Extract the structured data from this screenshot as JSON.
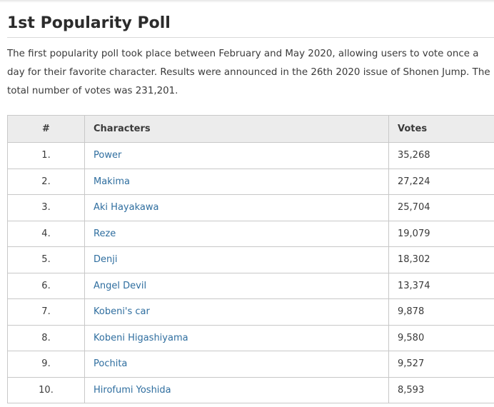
{
  "section": {
    "title": "1st Popularity Poll",
    "intro": "The first popularity poll took place between February and May 2020, allowing users to vote once a day for their favorite character. Results were announced in the 26th 2020 issue of Shonen Jump. The total number of votes was 231,201."
  },
  "table": {
    "headers": [
      "#",
      "Characters",
      "Votes"
    ],
    "rows": [
      {
        "rank": "1.",
        "character": "Power",
        "votes": "35,268"
      },
      {
        "rank": "2.",
        "character": "Makima",
        "votes": "27,224"
      },
      {
        "rank": "3.",
        "character": "Aki Hayakawa",
        "votes": "25,704"
      },
      {
        "rank": "4.",
        "character": "Reze",
        "votes": "19,079"
      },
      {
        "rank": "5.",
        "character": "Denji",
        "votes": "18,302"
      },
      {
        "rank": "6.",
        "character": "Angel Devil",
        "votes": "13,374"
      },
      {
        "rank": "7.",
        "character": "Kobeni's car",
        "votes": "9,878"
      },
      {
        "rank": "8.",
        "character": "Kobeni Higashiyama",
        "votes": "9,580"
      },
      {
        "rank": "9.",
        "character": "Pochita",
        "votes": "9,527"
      },
      {
        "rank": "10.",
        "character": "Hirofumi Yoshida",
        "votes": "8,593"
      }
    ]
  },
  "colors": {
    "link": "#2f6e9f",
    "header_bg": "#ececec",
    "border": "#c8c8c8"
  }
}
